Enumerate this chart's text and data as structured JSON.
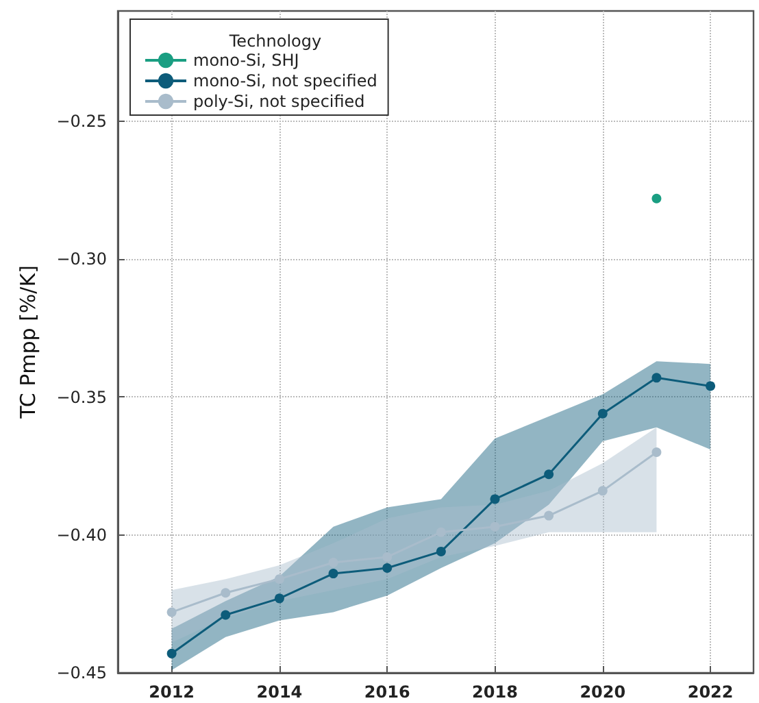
{
  "chart_data": {
    "type": "line",
    "ylabel": "TC Pmpp [%/K]",
    "legend_title": "Technology",
    "xlim": [
      2011,
      2022.8
    ],
    "xticks": [
      2012,
      2014,
      2016,
      2018,
      2020,
      2022
    ],
    "ylim": [
      -0.45,
      -0.21
    ],
    "yticks": [
      {
        "value": -0.45,
        "label": "−0.45"
      },
      {
        "value": -0.4,
        "label": "−0.40"
      },
      {
        "value": -0.35,
        "label": "−0.35"
      },
      {
        "value": -0.3,
        "label": "−0.30"
      },
      {
        "value": -0.25,
        "label": "−0.25"
      }
    ],
    "grid": true,
    "legend": "top left",
    "marker": "circle",
    "line_style": "solid",
    "series": [
      {
        "name": "mono-Si, SHJ",
        "color": "#1a9e82",
        "x": [
          2021
        ],
        "values": [
          -0.278
        ]
      },
      {
        "name": "mono-Si, not specified",
        "color": "#0d5c7a",
        "x": [
          2012,
          2013,
          2014,
          2015,
          2016,
          2017,
          2018,
          2019,
          2020,
          2021,
          2022
        ],
        "values": [
          -0.443,
          -0.429,
          -0.423,
          -0.414,
          -0.412,
          -0.406,
          -0.387,
          -0.378,
          -0.356,
          -0.343,
          -0.346
        ],
        "lower": [
          -0.449,
          -0.437,
          -0.431,
          -0.428,
          -0.422,
          -0.412,
          -0.403,
          -0.389,
          -0.366,
          -0.361,
          -0.369
        ],
        "upper": [
          -0.434,
          -0.424,
          -0.415,
          -0.397,
          -0.39,
          -0.387,
          -0.365,
          -0.357,
          -0.349,
          -0.337,
          -0.338
        ]
      },
      {
        "name": "poly-Si, not specified",
        "color": "#a9bccb",
        "x": [
          2012,
          2013,
          2014,
          2015,
          2016,
          2017,
          2018,
          2019,
          2020,
          2021
        ],
        "values": [
          -0.428,
          -0.421,
          -0.416,
          -0.41,
          -0.408,
          -0.399,
          -0.397,
          -0.393,
          -0.384,
          -0.37
        ],
        "lower": [
          -0.439,
          -0.43,
          -0.424,
          -0.42,
          -0.416,
          -0.408,
          -0.404,
          -0.399,
          -0.399,
          -0.399
        ],
        "upper": [
          -0.42,
          -0.416,
          -0.411,
          -0.403,
          -0.394,
          -0.39,
          -0.389,
          -0.384,
          -0.374,
          -0.361
        ]
      }
    ]
  }
}
